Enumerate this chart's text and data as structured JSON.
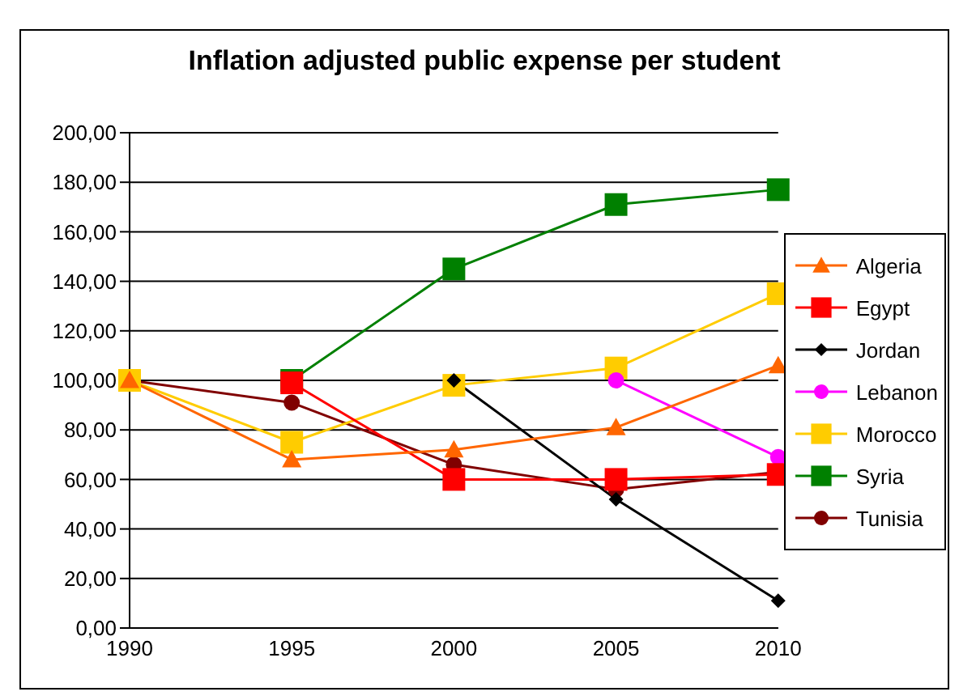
{
  "chart_data": {
    "type": "line",
    "title": "Inflation adjusted public expense per student",
    "categories": [
      "1990",
      "1995",
      "2000",
      "2005",
      "2010"
    ],
    "series": [
      {
        "name": "Algeria",
        "color": "#ff6600",
        "marker": "triangle",
        "values": [
          100,
          68,
          72,
          81,
          106
        ]
      },
      {
        "name": "Egypt",
        "color": "#ff0000",
        "marker": "square",
        "values": [
          null,
          99,
          60,
          60,
          62
        ]
      },
      {
        "name": "Jordan",
        "color": "#000000",
        "marker": "diamond",
        "values": [
          null,
          null,
          100,
          52,
          11
        ]
      },
      {
        "name": "Lebanon",
        "color": "#ff00ff",
        "marker": "circle",
        "values": [
          null,
          null,
          null,
          100,
          69
        ]
      },
      {
        "name": "Morocco",
        "color": "#ffcc00",
        "marker": "square",
        "values": [
          100,
          75,
          98,
          105,
          135
        ]
      },
      {
        "name": "Syria",
        "color": "#008000",
        "marker": "square",
        "values": [
          null,
          100,
          145,
          171,
          177
        ]
      },
      {
        "name": "Tunisia",
        "color": "#800000",
        "marker": "circle",
        "values": [
          100,
          91,
          66,
          56,
          63
        ]
      }
    ],
    "ylim": [
      0,
      200
    ],
    "yticks": [
      {
        "value": 0,
        "label": "0,00"
      },
      {
        "value": 20,
        "label": "20,00"
      },
      {
        "value": 40,
        "label": "40,00"
      },
      {
        "value": 60,
        "label": "60,00"
      },
      {
        "value": 80,
        "label": "80,00"
      },
      {
        "value": 100,
        "label": "100,00"
      },
      {
        "value": 120,
        "label": "120,00"
      },
      {
        "value": 140,
        "label": "140,00"
      },
      {
        "value": 160,
        "label": "160,00"
      },
      {
        "value": 180,
        "label": "180,00"
      },
      {
        "value": 200,
        "label": "200,00"
      }
    ],
    "grid": "y",
    "legend": "right",
    "line_style": "solid"
  }
}
